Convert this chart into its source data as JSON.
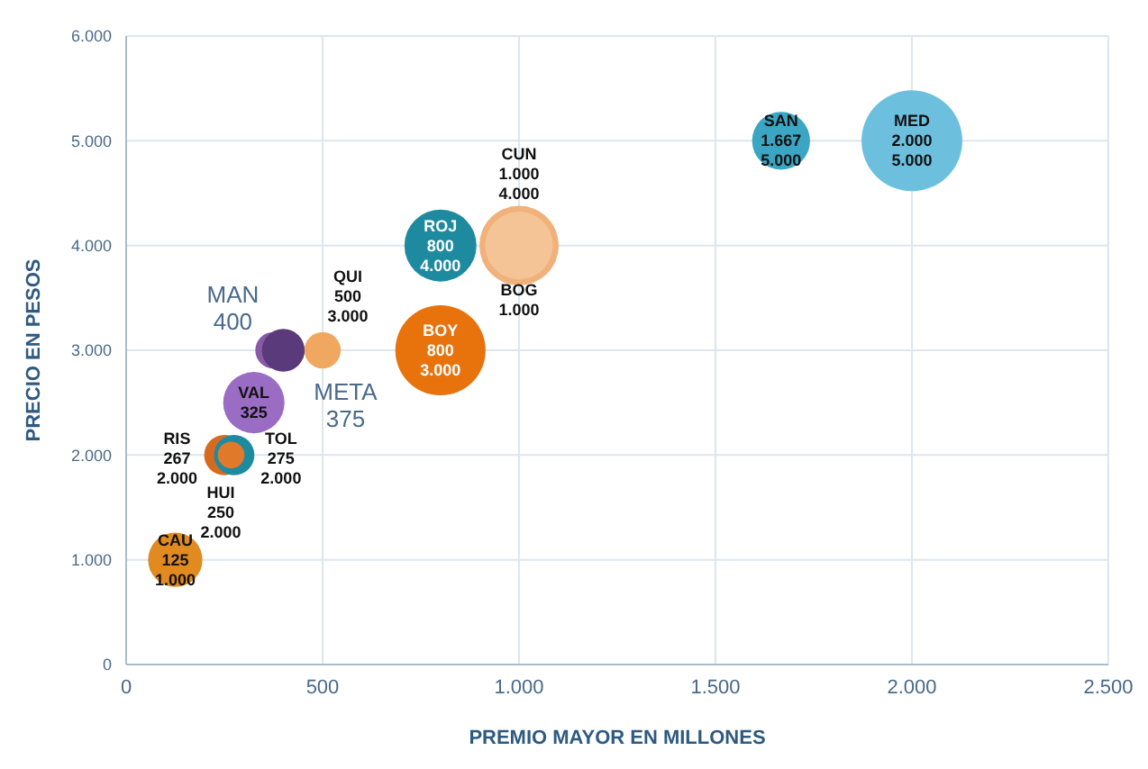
{
  "chart_data": {
    "type": "bubble",
    "xlabel": "PREMIO MAYOR EN MILLONES",
    "ylabel": "PRECIO EN PESOS",
    "x": [
      1000,
      2000,
      1667,
      1000,
      800,
      800,
      375,
      400,
      500,
      325,
      250,
      275,
      267,
      125
    ],
    "values": [
      4000,
      5000,
      5000,
      4000,
      4000,
      3000,
      3000,
      3000,
      3000,
      2500,
      2000,
      2000,
      2000,
      1000
    ],
    "sizes": [
      0.62,
      1,
      0.33,
      0.45,
      0.51,
      0.8,
      0.13,
      0.18,
      0.13,
      0.37,
      0.16,
      0.16,
      0.07,
      0.29
    ],
    "colors": [
      "#f0b27a",
      "#6cc0de",
      "#3aa6c4",
      "#f5c496",
      "#1e8aa0",
      "#e8720c",
      "#8a5aa8",
      "#5a3a7a",
      "#f0a860",
      "#9a6cc4",
      "#d86a20",
      "#1e8aa0",
      "#e07a2a",
      "#e08a20"
    ],
    "value_labels": [
      "CUN\n1.000\n4.000",
      "MED\n2.000\n5.000",
      "SAN\n1.667\n5.000",
      "BOG\n1.000",
      "ROJ\n800\n4.000",
      "BOY\n800\n3.000",
      "META\n375",
      "MAN\n400",
      "QUI\n500\n3.000",
      "VAL\n325",
      "HUI\n250\n2.000",
      "TOL\n275\n2.000",
      "RIS\n267\n2.000",
      "CAU\n125\n1.000"
    ],
    "xlim": [
      0,
      2500
    ],
    "xticks": [
      0,
      500,
      {
        "value": 1000,
        "label": "1.000"
      },
      {
        "value": 1500,
        "label": "1.500"
      },
      {
        "value": 2000,
        "label": "2.000"
      },
      {
        "value": 2500,
        "label": "2.500"
      }
    ],
    "ylim": [
      0,
      6000
    ],
    "yticks": [
      0,
      {
        "value": 1000,
        "label": "1.000"
      },
      {
        "value": 2000,
        "label": "2.000"
      },
      {
        "value": 3000,
        "label": "3.000"
      },
      {
        "value": 4000,
        "label": "4.000"
      },
      {
        "value": 5000,
        "label": "5.000"
      },
      {
        "value": 6000,
        "label": "6.000"
      }
    ],
    "grid": true
  }
}
